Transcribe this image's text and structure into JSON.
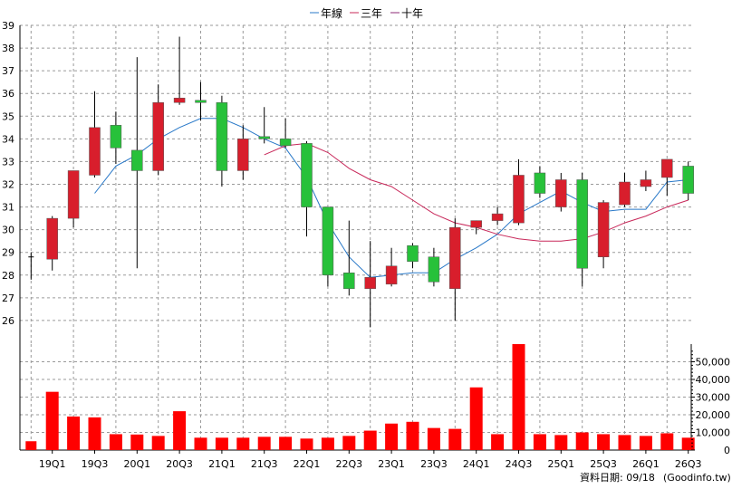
{
  "colors": {
    "up": "#d81e2c",
    "down": "#27c13a",
    "annual_ma": "#2878c8",
    "three_year_ma": "#c8285a",
    "ten_year_ma": "#8c2874",
    "volume": "#ff0000",
    "wick": "#000000"
  },
  "chart_data": [
    {
      "type": "candlestick",
      "title": "",
      "legend": {
        "placement": "top-center",
        "items": [
          {
            "label": "年線",
            "color_key": "annual_ma"
          },
          {
            "label": "三年",
            "color_key": "three_year_ma"
          },
          {
            "label": "十年",
            "color_key": "ten_year_ma"
          }
        ]
      },
      "y_axis": {
        "position": "left",
        "min": 25,
        "max": 39,
        "ticks": [
          26,
          27,
          28,
          29,
          30,
          31,
          32,
          33,
          34,
          35,
          36,
          37,
          38,
          39
        ]
      },
      "grid": true,
      "categories": [
        "19Q1",
        "19Q2",
        "19Q3",
        "19Q4",
        "20Q1",
        "20Q2",
        "20Q3",
        "20Q4",
        "21Q1",
        "21Q2",
        "21Q3",
        "21Q4",
        "22Q1",
        "22Q2",
        "22Q3",
        "22Q4",
        "23Q1",
        "23Q2",
        "23Q3",
        "23Q4",
        "24Q1",
        "24Q2",
        "24Q3",
        "24Q4",
        "25Q1",
        "25Q2",
        "25Q3",
        "25Q4",
        "26Q1",
        "26Q2",
        "26Q3"
      ],
      "x_tick_labels": [
        "19Q1",
        "19Q3",
        "20Q1",
        "20Q3",
        "21Q1",
        "21Q3",
        "22Q1",
        "22Q3",
        "23Q1",
        "23Q3",
        "24Q1",
        "24Q3",
        "25Q1",
        "25Q3",
        "26Q1",
        "26Q3"
      ],
      "partial_first_bar": {
        "open": 28.8,
        "high": 29.0,
        "low": 27.8,
        "close": 28.8
      },
      "candles": [
        {
          "open": 28.7,
          "high": 30.6,
          "low": 28.2,
          "close": 30.5
        },
        {
          "open": 30.5,
          "high": 32.6,
          "low": 30.1,
          "close": 32.6
        },
        {
          "open": 32.4,
          "high": 36.1,
          "low": 32.3,
          "close": 34.5
        },
        {
          "open": 34.6,
          "high": 35.2,
          "low": 32.9,
          "close": 33.6
        },
        {
          "open": 33.5,
          "high": 37.6,
          "low": 28.3,
          "close": 32.6
        },
        {
          "open": 32.6,
          "high": 36.4,
          "low": 32.4,
          "close": 35.6
        },
        {
          "open": 35.6,
          "high": 38.5,
          "low": 35.5,
          "close": 35.8
        },
        {
          "open": 35.7,
          "high": 36.5,
          "low": 34.8,
          "close": 35.6
        },
        {
          "open": 35.6,
          "high": 35.9,
          "low": 31.9,
          "close": 32.6
        },
        {
          "open": 32.6,
          "high": 34.6,
          "low": 32.2,
          "close": 34.0
        },
        {
          "open": 34.1,
          "high": 35.4,
          "low": 33.8,
          "close": 34.0
        },
        {
          "open": 34.0,
          "high": 34.9,
          "low": 33.6,
          "close": 33.7
        },
        {
          "open": 33.8,
          "high": 33.9,
          "low": 29.7,
          "close": 31.0
        },
        {
          "open": 31.0,
          "high": 31.0,
          "low": 27.5,
          "close": 28.0
        },
        {
          "open": 28.1,
          "high": 30.4,
          "low": 27.1,
          "close": 27.4
        },
        {
          "open": 27.4,
          "high": 29.5,
          "low": 25.7,
          "close": 27.9
        },
        {
          "open": 27.6,
          "high": 29.2,
          "low": 27.5,
          "close": 28.4
        },
        {
          "open": 29.3,
          "high": 29.4,
          "low": 28.3,
          "close": 28.6
        },
        {
          "open": 28.8,
          "high": 29.2,
          "low": 27.5,
          "close": 27.7
        },
        {
          "open": 27.4,
          "high": 30.5,
          "low": 26.0,
          "close": 30.1
        },
        {
          "open": 30.1,
          "high": 30.4,
          "low": 29.8,
          "close": 30.4
        },
        {
          "open": 30.4,
          "high": 31.0,
          "low": 30.2,
          "close": 30.7
        },
        {
          "open": 30.3,
          "high": 33.1,
          "low": 30.2,
          "close": 32.4
        },
        {
          "open": 32.5,
          "high": 32.8,
          "low": 31.4,
          "close": 31.6
        },
        {
          "open": 31.0,
          "high": 32.5,
          "low": 30.8,
          "close": 32.2
        },
        {
          "open": 32.2,
          "high": 32.5,
          "low": 27.5,
          "close": 28.3
        },
        {
          "open": 28.8,
          "high": 31.3,
          "low": 28.3,
          "close": 31.2
        },
        {
          "open": 31.1,
          "high": 32.5,
          "low": 31.0,
          "close": 32.1
        },
        {
          "open": 31.9,
          "high": 32.6,
          "low": 31.7,
          "close": 32.2
        },
        {
          "open": 32.3,
          "high": 33.1,
          "low": 31.5,
          "close": 33.1
        },
        {
          "open": 32.8,
          "high": 33.0,
          "low": 31.3,
          "close": 31.6
        }
      ],
      "series": [
        {
          "name": "年線",
          "color_key": "annual_ma",
          "values": [
            null,
            null,
            31.6,
            32.8,
            33.3,
            34.0,
            34.5,
            34.9,
            34.9,
            34.5,
            34.0,
            33.6,
            32.3,
            30.3,
            28.8,
            27.9,
            28.0,
            28.1,
            28.1,
            28.7,
            29.2,
            29.8,
            30.7,
            31.2,
            31.7,
            31.2,
            30.8,
            30.9,
            30.9,
            32.1,
            32.2
          ]
        },
        {
          "name": "三年",
          "color_key": "three_year_ma",
          "values": [
            null,
            null,
            null,
            null,
            null,
            null,
            null,
            null,
            null,
            null,
            33.3,
            33.7,
            33.8,
            33.4,
            32.7,
            32.2,
            31.9,
            31.3,
            30.7,
            30.3,
            30.1,
            29.8,
            29.6,
            29.5,
            29.5,
            29.6,
            29.9,
            30.3,
            30.6,
            31.0,
            31.3
          ]
        }
      ]
    },
    {
      "type": "bar",
      "title": "",
      "y_axis": {
        "position": "right",
        "min": 0,
        "max": 60000,
        "ticks": [
          0,
          10000,
          20000,
          30000,
          40000,
          50000
        ],
        "tick_labels": [
          "0",
          "10,000",
          "20,000",
          "30,000",
          "40,000",
          "50,000"
        ]
      },
      "categories": [
        "19Q1",
        "19Q2",
        "19Q3",
        "19Q4",
        "20Q1",
        "20Q2",
        "20Q3",
        "20Q4",
        "21Q1",
        "21Q2",
        "21Q3",
        "21Q4",
        "22Q1",
        "22Q2",
        "22Q3",
        "22Q4",
        "23Q1",
        "23Q2",
        "23Q3",
        "23Q4",
        "24Q1",
        "24Q2",
        "24Q3",
        "24Q4",
        "25Q1",
        "25Q2",
        "25Q3",
        "25Q4",
        "26Q1",
        "26Q2",
        "26Q3"
      ],
      "partial_first_value": 5000,
      "values": [
        33000,
        19000,
        18500,
        9000,
        8800,
        8000,
        22000,
        7000,
        7000,
        7000,
        7500,
        7500,
        6500,
        7000,
        8000,
        11000,
        15000,
        16000,
        12500,
        12000,
        35500,
        9000,
        60000,
        9000,
        8500,
        10000,
        9000,
        8500,
        8000,
        9500,
        7000
      ]
    }
  ],
  "footer": {
    "date_label": "資料日期: 09/18",
    "source": "(Goodinfo.tw)"
  }
}
